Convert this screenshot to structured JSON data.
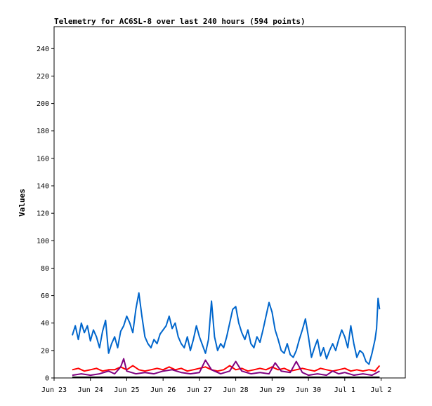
{
  "chart_data": {
    "type": "line",
    "title": "Telemetry for AC6SL-8 over last 240 hours (594 points)",
    "xlabel": "",
    "ylabel": "Values",
    "ylim": [
      0,
      256
    ],
    "yticks": [
      0,
      20,
      40,
      60,
      80,
      100,
      120,
      140,
      160,
      180,
      200,
      220,
      240
    ],
    "xlim": [
      "2023-06-23 00:00",
      "2023-07-02 16:00"
    ],
    "xticks": [
      {
        "label": "Jun 23",
        "x": "2023-06-23 00:00"
      },
      {
        "label": "Jun 24",
        "x": "2023-06-24 00:00"
      },
      {
        "label": "Jun 25",
        "x": "2023-06-25 00:00"
      },
      {
        "label": "Jun 26",
        "x": "2023-06-26 00:00"
      },
      {
        "label": "Jun 27",
        "x": "2023-06-27 00:00"
      },
      {
        "label": "Jun 28",
        "x": "2023-06-28 00:00"
      },
      {
        "label": "Jun 29",
        "x": "2023-06-29 00:00"
      },
      {
        "label": "Jun 30",
        "x": "2023-06-30 00:00"
      },
      {
        "label": "Jul 1",
        "x": "2023-07-01 00:00"
      },
      {
        "label": "Jul 2",
        "x": "2023-07-02 00:00"
      }
    ],
    "grid": false,
    "legend": "none",
    "series": [
      {
        "color": "#0066cc",
        "points": [
          [
            "2023-06-23 12:00",
            31
          ],
          [
            "2023-06-23 14:00",
            38
          ],
          [
            "2023-06-23 16:00",
            28
          ],
          [
            "2023-06-23 18:00",
            40
          ],
          [
            "2023-06-23 20:00",
            33
          ],
          [
            "2023-06-23 22:00",
            38
          ],
          [
            "2023-06-24 00:00",
            27
          ],
          [
            "2023-06-24 02:00",
            35
          ],
          [
            "2023-06-24 04:00",
            30
          ],
          [
            "2023-06-24 06:00",
            22
          ],
          [
            "2023-06-24 08:00",
            34
          ],
          [
            "2023-06-24 10:00",
            42
          ],
          [
            "2023-06-24 12:00",
            18
          ],
          [
            "2023-06-24 14:00",
            25
          ],
          [
            "2023-06-24 16:00",
            30
          ],
          [
            "2023-06-24 18:00",
            22
          ],
          [
            "2023-06-24 20:00",
            34
          ],
          [
            "2023-06-24 22:00",
            38
          ],
          [
            "2023-06-25 00:00",
            45
          ],
          [
            "2023-06-25 02:00",
            40
          ],
          [
            "2023-06-25 04:00",
            33
          ],
          [
            "2023-06-25 06:00",
            50
          ],
          [
            "2023-06-25 08:00",
            62
          ],
          [
            "2023-06-25 10:00",
            45
          ],
          [
            "2023-06-25 12:00",
            30
          ],
          [
            "2023-06-25 14:00",
            25
          ],
          [
            "2023-06-25 16:00",
            22
          ],
          [
            "2023-06-25 18:00",
            28
          ],
          [
            "2023-06-25 20:00",
            25
          ],
          [
            "2023-06-25 22:00",
            32
          ],
          [
            "2023-06-26 00:00",
            35
          ],
          [
            "2023-06-26 02:00",
            38
          ],
          [
            "2023-06-26 04:00",
            45
          ],
          [
            "2023-06-26 06:00",
            36
          ],
          [
            "2023-06-26 08:00",
            40
          ],
          [
            "2023-06-26 10:00",
            30
          ],
          [
            "2023-06-26 12:00",
            25
          ],
          [
            "2023-06-26 14:00",
            22
          ],
          [
            "2023-06-26 16:00",
            30
          ],
          [
            "2023-06-26 18:00",
            20
          ],
          [
            "2023-06-26 20:00",
            28
          ],
          [
            "2023-06-26 22:00",
            38
          ],
          [
            "2023-06-27 00:00",
            30
          ],
          [
            "2023-06-27 02:00",
            24
          ],
          [
            "2023-06-27 04:00",
            18
          ],
          [
            "2023-06-27 06:00",
            28
          ],
          [
            "2023-06-27 08:00",
            56
          ],
          [
            "2023-06-27 10:00",
            30
          ],
          [
            "2023-06-27 12:00",
            20
          ],
          [
            "2023-06-27 14:00",
            25
          ],
          [
            "2023-06-27 16:00",
            22
          ],
          [
            "2023-06-27 18:00",
            30
          ],
          [
            "2023-06-27 20:00",
            40
          ],
          [
            "2023-06-27 22:00",
            50
          ],
          [
            "2023-06-28 00:00",
            52
          ],
          [
            "2023-06-28 02:00",
            40
          ],
          [
            "2023-06-28 04:00",
            33
          ],
          [
            "2023-06-28 06:00",
            28
          ],
          [
            "2023-06-28 08:00",
            35
          ],
          [
            "2023-06-28 10:00",
            25
          ],
          [
            "2023-06-28 12:00",
            22
          ],
          [
            "2023-06-28 14:00",
            30
          ],
          [
            "2023-06-28 16:00",
            26
          ],
          [
            "2023-06-28 18:00",
            35
          ],
          [
            "2023-06-28 20:00",
            45
          ],
          [
            "2023-06-28 22:00",
            55
          ],
          [
            "2023-06-29 00:00",
            48
          ],
          [
            "2023-06-29 02:00",
            35
          ],
          [
            "2023-06-29 04:00",
            28
          ],
          [
            "2023-06-29 06:00",
            20
          ],
          [
            "2023-06-29 08:00",
            18
          ],
          [
            "2023-06-29 10:00",
            25
          ],
          [
            "2023-06-29 12:00",
            17
          ],
          [
            "2023-06-29 14:00",
            15
          ],
          [
            "2023-06-29 16:00",
            20
          ],
          [
            "2023-06-29 18:00",
            28
          ],
          [
            "2023-06-29 20:00",
            35
          ],
          [
            "2023-06-29 22:00",
            43
          ],
          [
            "2023-06-30 00:00",
            30
          ],
          [
            "2023-06-30 02:00",
            15
          ],
          [
            "2023-06-30 04:00",
            22
          ],
          [
            "2023-06-30 06:00",
            28
          ],
          [
            "2023-06-30 08:00",
            16
          ],
          [
            "2023-06-30 10:00",
            22
          ],
          [
            "2023-06-30 12:00",
            14
          ],
          [
            "2023-06-30 14:00",
            20
          ],
          [
            "2023-06-30 16:00",
            25
          ],
          [
            "2023-06-30 18:00",
            20
          ],
          [
            "2023-06-30 20:00",
            28
          ],
          [
            "2023-06-30 22:00",
            35
          ],
          [
            "2023-07-01 00:00",
            30
          ],
          [
            "2023-07-01 02:00",
            22
          ],
          [
            "2023-07-01 04:00",
            38
          ],
          [
            "2023-07-01 06:00",
            25
          ],
          [
            "2023-07-01 08:00",
            15
          ],
          [
            "2023-07-01 10:00",
            20
          ],
          [
            "2023-07-01 12:00",
            18
          ],
          [
            "2023-07-01 14:00",
            12
          ],
          [
            "2023-07-01 16:00",
            10
          ],
          [
            "2023-07-01 18:00",
            18
          ],
          [
            "2023-07-01 20:00",
            28
          ],
          [
            "2023-07-01 21:00",
            36
          ],
          [
            "2023-07-01 22:00",
            58
          ],
          [
            "2023-07-01 23:00",
            50
          ]
        ]
      },
      {
        "color": "#ff0000",
        "points": [
          [
            "2023-06-23 12:00",
            6
          ],
          [
            "2023-06-23 16:00",
            7
          ],
          [
            "2023-06-23 20:00",
            5
          ],
          [
            "2023-06-24 00:00",
            6
          ],
          [
            "2023-06-24 04:00",
            7
          ],
          [
            "2023-06-24 08:00",
            5
          ],
          [
            "2023-06-24 12:00",
            6
          ],
          [
            "2023-06-24 16:00",
            6
          ],
          [
            "2023-06-24 20:00",
            8
          ],
          [
            "2023-06-25 00:00",
            6
          ],
          [
            "2023-06-25 04:00",
            9
          ],
          [
            "2023-06-25 08:00",
            6
          ],
          [
            "2023-06-25 12:00",
            5
          ],
          [
            "2023-06-25 16:00",
            6
          ],
          [
            "2023-06-25 20:00",
            7
          ],
          [
            "2023-06-26 00:00",
            6
          ],
          [
            "2023-06-26 04:00",
            8
          ],
          [
            "2023-06-26 08:00",
            6
          ],
          [
            "2023-06-26 12:00",
            7
          ],
          [
            "2023-06-26 16:00",
            5
          ],
          [
            "2023-06-26 20:00",
            6
          ],
          [
            "2023-06-27 00:00",
            7
          ],
          [
            "2023-06-27 04:00",
            8
          ],
          [
            "2023-06-27 08:00",
            6
          ],
          [
            "2023-06-27 12:00",
            5
          ],
          [
            "2023-06-27 16:00",
            6
          ],
          [
            "2023-06-27 20:00",
            9
          ],
          [
            "2023-06-28 00:00",
            6
          ],
          [
            "2023-06-28 04:00",
            7
          ],
          [
            "2023-06-28 08:00",
            5
          ],
          [
            "2023-06-28 12:00",
            6
          ],
          [
            "2023-06-28 16:00",
            7
          ],
          [
            "2023-06-28 20:00",
            6
          ],
          [
            "2023-06-29 00:00",
            8
          ],
          [
            "2023-06-29 04:00",
            6
          ],
          [
            "2023-06-29 08:00",
            7
          ],
          [
            "2023-06-29 12:00",
            5
          ],
          [
            "2023-06-29 16:00",
            6
          ],
          [
            "2023-06-29 20:00",
            7
          ],
          [
            "2023-06-30 00:00",
            6
          ],
          [
            "2023-06-30 04:00",
            5
          ],
          [
            "2023-06-30 08:00",
            7
          ],
          [
            "2023-06-30 12:00",
            6
          ],
          [
            "2023-06-30 16:00",
            5
          ],
          [
            "2023-06-30 20:00",
            6
          ],
          [
            "2023-07-01 00:00",
            7
          ],
          [
            "2023-07-01 04:00",
            5
          ],
          [
            "2023-07-01 08:00",
            6
          ],
          [
            "2023-07-01 12:00",
            5
          ],
          [
            "2023-07-01 16:00",
            6
          ],
          [
            "2023-07-01 20:00",
            5
          ],
          [
            "2023-07-01 23:00",
            9
          ]
        ]
      },
      {
        "color": "#800080",
        "points": [
          [
            "2023-06-23 12:00",
            2
          ],
          [
            "2023-06-23 18:00",
            3
          ],
          [
            "2023-06-24 00:00",
            2
          ],
          [
            "2023-06-24 06:00",
            3
          ],
          [
            "2023-06-24 12:00",
            5
          ],
          [
            "2023-06-24 16:00",
            3
          ],
          [
            "2023-06-24 20:00",
            8
          ],
          [
            "2023-06-24 22:00",
            14
          ],
          [
            "2023-06-25 00:00",
            5
          ],
          [
            "2023-06-25 06:00",
            3
          ],
          [
            "2023-06-25 12:00",
            4
          ],
          [
            "2023-06-25 18:00",
            3
          ],
          [
            "2023-06-26 00:00",
            5
          ],
          [
            "2023-06-26 06:00",
            6
          ],
          [
            "2023-06-26 12:00",
            4
          ],
          [
            "2023-06-26 18:00",
            3
          ],
          [
            "2023-06-27 00:00",
            4
          ],
          [
            "2023-06-27 04:00",
            13
          ],
          [
            "2023-06-27 08:00",
            6
          ],
          [
            "2023-06-27 14:00",
            3
          ],
          [
            "2023-06-27 20:00",
            5
          ],
          [
            "2023-06-28 00:00",
            12
          ],
          [
            "2023-06-28 04:00",
            5
          ],
          [
            "2023-06-28 10:00",
            3
          ],
          [
            "2023-06-28 16:00",
            4
          ],
          [
            "2023-06-28 22:00",
            3
          ],
          [
            "2023-06-29 02:00",
            11
          ],
          [
            "2023-06-29 06:00",
            5
          ],
          [
            "2023-06-29 12:00",
            4
          ],
          [
            "2023-06-29 16:00",
            12
          ],
          [
            "2023-06-29 20:00",
            4
          ],
          [
            "2023-06-30 00:00",
            2
          ],
          [
            "2023-06-30 06:00",
            3
          ],
          [
            "2023-06-30 12:00",
            2
          ],
          [
            "2023-06-30 16:00",
            5
          ],
          [
            "2023-06-30 20:00",
            3
          ],
          [
            "2023-07-01 00:00",
            4
          ],
          [
            "2023-07-01 06:00",
            2
          ],
          [
            "2023-07-01 12:00",
            3
          ],
          [
            "2023-07-01 18:00",
            2
          ],
          [
            "2023-07-01 23:00",
            5
          ]
        ]
      },
      {
        "color": "#000000",
        "points": [
          [
            "2023-06-23 12:00",
            0.5
          ],
          [
            "2023-06-24 12:00",
            0.5
          ],
          [
            "2023-06-25 12:00",
            0.5
          ],
          [
            "2023-06-26 12:00",
            0.5
          ],
          [
            "2023-06-27 12:00",
            0.5
          ],
          [
            "2023-06-28 12:00",
            0.5
          ],
          [
            "2023-06-29 12:00",
            0.5
          ],
          [
            "2023-06-30 12:00",
            0.5
          ],
          [
            "2023-07-01 12:00",
            0.5
          ],
          [
            "2023-07-01 23:00",
            0.5
          ]
        ]
      }
    ]
  }
}
